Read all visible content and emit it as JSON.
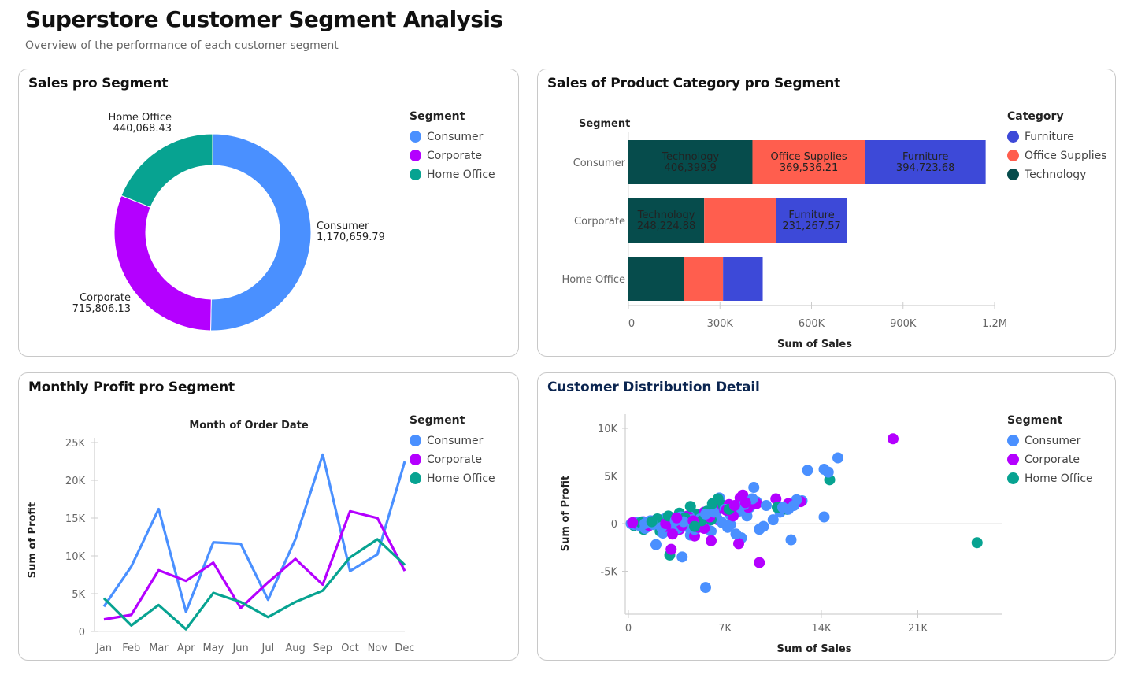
{
  "header": {
    "title": "Superstore Customer Segment Analysis",
    "subtitle": "Overview of the performance of each customer segment"
  },
  "colors": {
    "consumer": "#4a90ff",
    "corporate": "#b400ff",
    "home_office": "#07a391",
    "furniture": "#3d49d8",
    "office_supplies": "#ff5e4e",
    "technology": "#064c4c"
  },
  "panels": {
    "donut": {
      "title": "Sales pro Segment",
      "legend_title": "Segment"
    },
    "bar": {
      "title": "Sales of Product Category pro Segment",
      "legend_title": "Category"
    },
    "line": {
      "title": "Monthly Profit pro Segment",
      "legend_title": "Segment"
    },
    "scatter": {
      "title": "Customer Distribution Detail",
      "legend_title": "Segment"
    }
  },
  "chart_data": [
    {
      "type": "pie",
      "variant": "donut",
      "title": "Sales pro Segment",
      "legend_title": "Segment",
      "legend_position": "right",
      "slices": [
        {
          "label": "Consumer",
          "value": 1170659.79,
          "value_label": "1,170,659.79",
          "color": "#4a90ff"
        },
        {
          "label": "Corporate",
          "value": 715806.13,
          "value_label": "715,806.13",
          "color": "#b400ff"
        },
        {
          "label": "Home Office",
          "value": 440068.43,
          "value_label": "440,068.43",
          "color": "#07a391"
        }
      ]
    },
    {
      "type": "bar",
      "orientation": "horizontal",
      "stacked": true,
      "title": "Sales of Product Category pro Segment",
      "ylabel": "Segment",
      "xlabel": "Sum of Sales",
      "xlim": [
        0,
        1200000
      ],
      "xticks": [
        {
          "value": 0,
          "label": "0"
        },
        {
          "value": 300000,
          "label": "300K"
        },
        {
          "value": 600000,
          "label": "600K"
        },
        {
          "value": 900000,
          "label": "900K"
        },
        {
          "value": 1200000,
          "label": "1.2M"
        }
      ],
      "legend_title": "Category",
      "legend_position": "right",
      "legend_order": [
        "Furniture",
        "Office Supplies",
        "Technology"
      ],
      "categories": [
        "Consumer",
        "Corporate",
        "Home Office"
      ],
      "series": [
        {
          "name": "Technology",
          "color": "#064c4c",
          "values": [
            406399.9,
            248224.88,
            183000
          ],
          "labels": [
            "406,399.9",
            "248,224.88",
            null
          ]
        },
        {
          "name": "Office Supplies",
          "color": "#ff5e4e",
          "values": [
            369536.21,
            236313.68,
            127000
          ],
          "labels": [
            "369,536.21",
            null,
            null
          ]
        },
        {
          "name": "Furniture",
          "color": "#3d49d8",
          "values": [
            394723.68,
            231267.57,
            130068
          ],
          "labels": [
            "394,723.68",
            "231,267.57",
            null
          ]
        }
      ]
    },
    {
      "type": "line",
      "title": "Monthly Profit pro Segment",
      "xlabel": "Month of Order Date",
      "ylabel": "Sum of Profit",
      "ylim": [
        0,
        25000
      ],
      "yticks": [
        {
          "value": 0,
          "label": "0"
        },
        {
          "value": 5000,
          "label": "5K"
        },
        {
          "value": 10000,
          "label": "10K"
        },
        {
          "value": 15000,
          "label": "15K"
        },
        {
          "value": 20000,
          "label": "20K"
        },
        {
          "value": 25000,
          "label": "25K"
        }
      ],
      "x": [
        "Jan",
        "Feb",
        "Mar",
        "Apr",
        "May",
        "Jun",
        "Jul",
        "Aug",
        "Sep",
        "Oct",
        "Nov",
        "Dec"
      ],
      "legend_title": "Segment",
      "legend_position": "right",
      "series": [
        {
          "name": "Consumer",
          "color": "#4a90ff",
          "values": [
            3300,
            8600,
            16200,
            2600,
            11800,
            11600,
            4200,
            12200,
            23400,
            8000,
            10200,
            22500
          ]
        },
        {
          "name": "Corporate",
          "color": "#b400ff",
          "values": [
            1600,
            2200,
            8100,
            6700,
            9100,
            3100,
            6500,
            9600,
            6200,
            15900,
            15000,
            8000
          ]
        },
        {
          "name": "Home Office",
          "color": "#07a391",
          "values": [
            4400,
            800,
            3500,
            300,
            5100,
            3900,
            1900,
            3900,
            5400,
            9800,
            12200,
            8800
          ]
        }
      ]
    },
    {
      "type": "scatter",
      "title": "Customer Distribution Detail",
      "xlabel": "Sum of Sales",
      "ylabel": "Sum of Profit",
      "xlim": [
        0,
        27000
      ],
      "ylim": [
        -9500,
        11500
      ],
      "xticks": [
        {
          "value": 0,
          "label": "0"
        },
        {
          "value": 7000,
          "label": "7K"
        },
        {
          "value": 14000,
          "label": "14K"
        },
        {
          "value": 21000,
          "label": "21K"
        }
      ],
      "yticks": [
        {
          "value": 10000,
          "label": "10K"
        },
        {
          "value": 5000,
          "label": "5K"
        },
        {
          "value": 0,
          "label": "0"
        },
        {
          "value": -5000,
          "label": "-5K"
        }
      ],
      "legend_title": "Segment",
      "legend_position": "right",
      "series": [
        {
          "name": "Consumer",
          "color": "#4a90ff",
          "points": [
            [
              200,
              0
            ],
            [
              400,
              -100
            ],
            [
              600,
              100
            ],
            [
              800,
              -200
            ],
            [
              1000,
              200
            ],
            [
              1200,
              0
            ],
            [
              1400,
              -300
            ],
            [
              1600,
              300
            ],
            [
              1800,
              -100
            ],
            [
              2000,
              400
            ],
            [
              2200,
              100
            ],
            [
              2400,
              -400
            ],
            [
              2600,
              500
            ],
            [
              2800,
              200
            ],
            [
              3000,
              -200
            ],
            [
              3200,
              600
            ],
            [
              3400,
              300
            ],
            [
              3600,
              -500
            ],
            [
              3800,
              700
            ],
            [
              4000,
              200
            ],
            [
              4200,
              -300
            ],
            [
              4400,
              800
            ],
            [
              4600,
              400
            ],
            [
              4800,
              -600
            ],
            [
              5000,
              900
            ],
            [
              5200,
              500
            ],
            [
              5400,
              -100
            ],
            [
              5600,
              1000
            ],
            [
              5800,
              300
            ],
            [
              6000,
              -800
            ],
            [
              6200,
              1200
            ],
            [
              6400,
              600
            ],
            [
              6600,
              2700
            ],
            [
              6800,
              100
            ],
            [
              7000,
              1500
            ],
            [
              7200,
              -400
            ],
            [
              7400,
              900
            ],
            [
              7600,
              1800
            ],
            [
              7800,
              -1100
            ],
            [
              8000,
              1300
            ],
            [
              8200,
              -1500
            ],
            [
              8400,
              2000
            ],
            [
              8600,
              800
            ],
            [
              8800,
              1700
            ],
            [
              9000,
              2600
            ],
            [
              9100,
              3800
            ],
            [
              9300,
              2300
            ],
            [
              9500,
              -600
            ],
            [
              9800,
              -300
            ],
            [
              10000,
              1900
            ],
            [
              10500,
              400
            ],
            [
              11000,
              1200
            ],
            [
              11200,
              1700
            ],
            [
              11600,
              1500
            ],
            [
              11800,
              -1700
            ],
            [
              12000,
              1900
            ],
            [
              12200,
              2500
            ],
            [
              12600,
              2400
            ],
            [
              13000,
              5600
            ],
            [
              14200,
              5700
            ],
            [
              14500,
              5400
            ],
            [
              15200,
              6900
            ],
            [
              14200,
              700
            ],
            [
              2000,
              -2200
            ],
            [
              3900,
              -3500
            ],
            [
              5600,
              -6700
            ],
            [
              1200,
              -500
            ],
            [
              2500,
              -1000
            ],
            [
              4500,
              -1200
            ],
            [
              7400,
              -100
            ]
          ]
        },
        {
          "name": "Corporate",
          "color": "#b400ff",
          "points": [
            [
              300,
              100
            ],
            [
              700,
              -100
            ],
            [
              1100,
              200
            ],
            [
              1500,
              -200
            ],
            [
              1900,
              300
            ],
            [
              2300,
              100
            ],
            [
              2700,
              -300
            ],
            [
              3100,
              400
            ],
            [
              3500,
              600
            ],
            [
              3900,
              -200
            ],
            [
              4300,
              800
            ],
            [
              4700,
              300
            ],
            [
              5100,
              -400
            ],
            [
              5500,
              1200
            ],
            [
              5900,
              700
            ],
            [
              6300,
              1100
            ],
            [
              6700,
              1600
            ],
            [
              7100,
              1400
            ],
            [
              7300,
              2000
            ],
            [
              7700,
              1900
            ],
            [
              8100,
              2700
            ],
            [
              8300,
              3000
            ],
            [
              8500,
              2200
            ],
            [
              8700,
              1700
            ],
            [
              9300,
              2100
            ],
            [
              10700,
              2600
            ],
            [
              11600,
              2100
            ],
            [
              12500,
              2300
            ],
            [
              3200,
              -1100
            ],
            [
              4800,
              -1300
            ],
            [
              6000,
              -1800
            ],
            [
              5500,
              -500
            ],
            [
              8000,
              -2100
            ],
            [
              3100,
              -2700
            ],
            [
              9500,
              -4100
            ],
            [
              19200,
              8900
            ],
            [
              2700,
              0
            ],
            [
              3700,
              -600
            ],
            [
              6500,
              400
            ],
            [
              7600,
              800
            ]
          ]
        },
        {
          "name": "Home Office",
          "color": "#07a391",
          "points": [
            [
              400,
              -200
            ],
            [
              900,
              100
            ],
            [
              1300,
              -400
            ],
            [
              1700,
              200
            ],
            [
              2100,
              500
            ],
            [
              2500,
              -100
            ],
            [
              2900,
              800
            ],
            [
              3300,
              -300
            ],
            [
              3700,
              1100
            ],
            [
              4100,
              600
            ],
            [
              4500,
              1800
            ],
            [
              4900,
              1000
            ],
            [
              5300,
              300
            ],
            [
              5700,
              1300
            ],
            [
              6100,
              2100
            ],
            [
              6500,
              2600
            ],
            [
              6900,
              1900
            ],
            [
              7300,
              1500
            ],
            [
              1100,
              -600
            ],
            [
              3000,
              -3300
            ],
            [
              10800,
              1700
            ],
            [
              11500,
              1500
            ],
            [
              14600,
              4600
            ],
            [
              25300,
              -2000
            ],
            [
              2300,
              -800
            ],
            [
              4800,
              -300
            ],
            [
              6000,
              400
            ]
          ]
        }
      ]
    }
  ]
}
